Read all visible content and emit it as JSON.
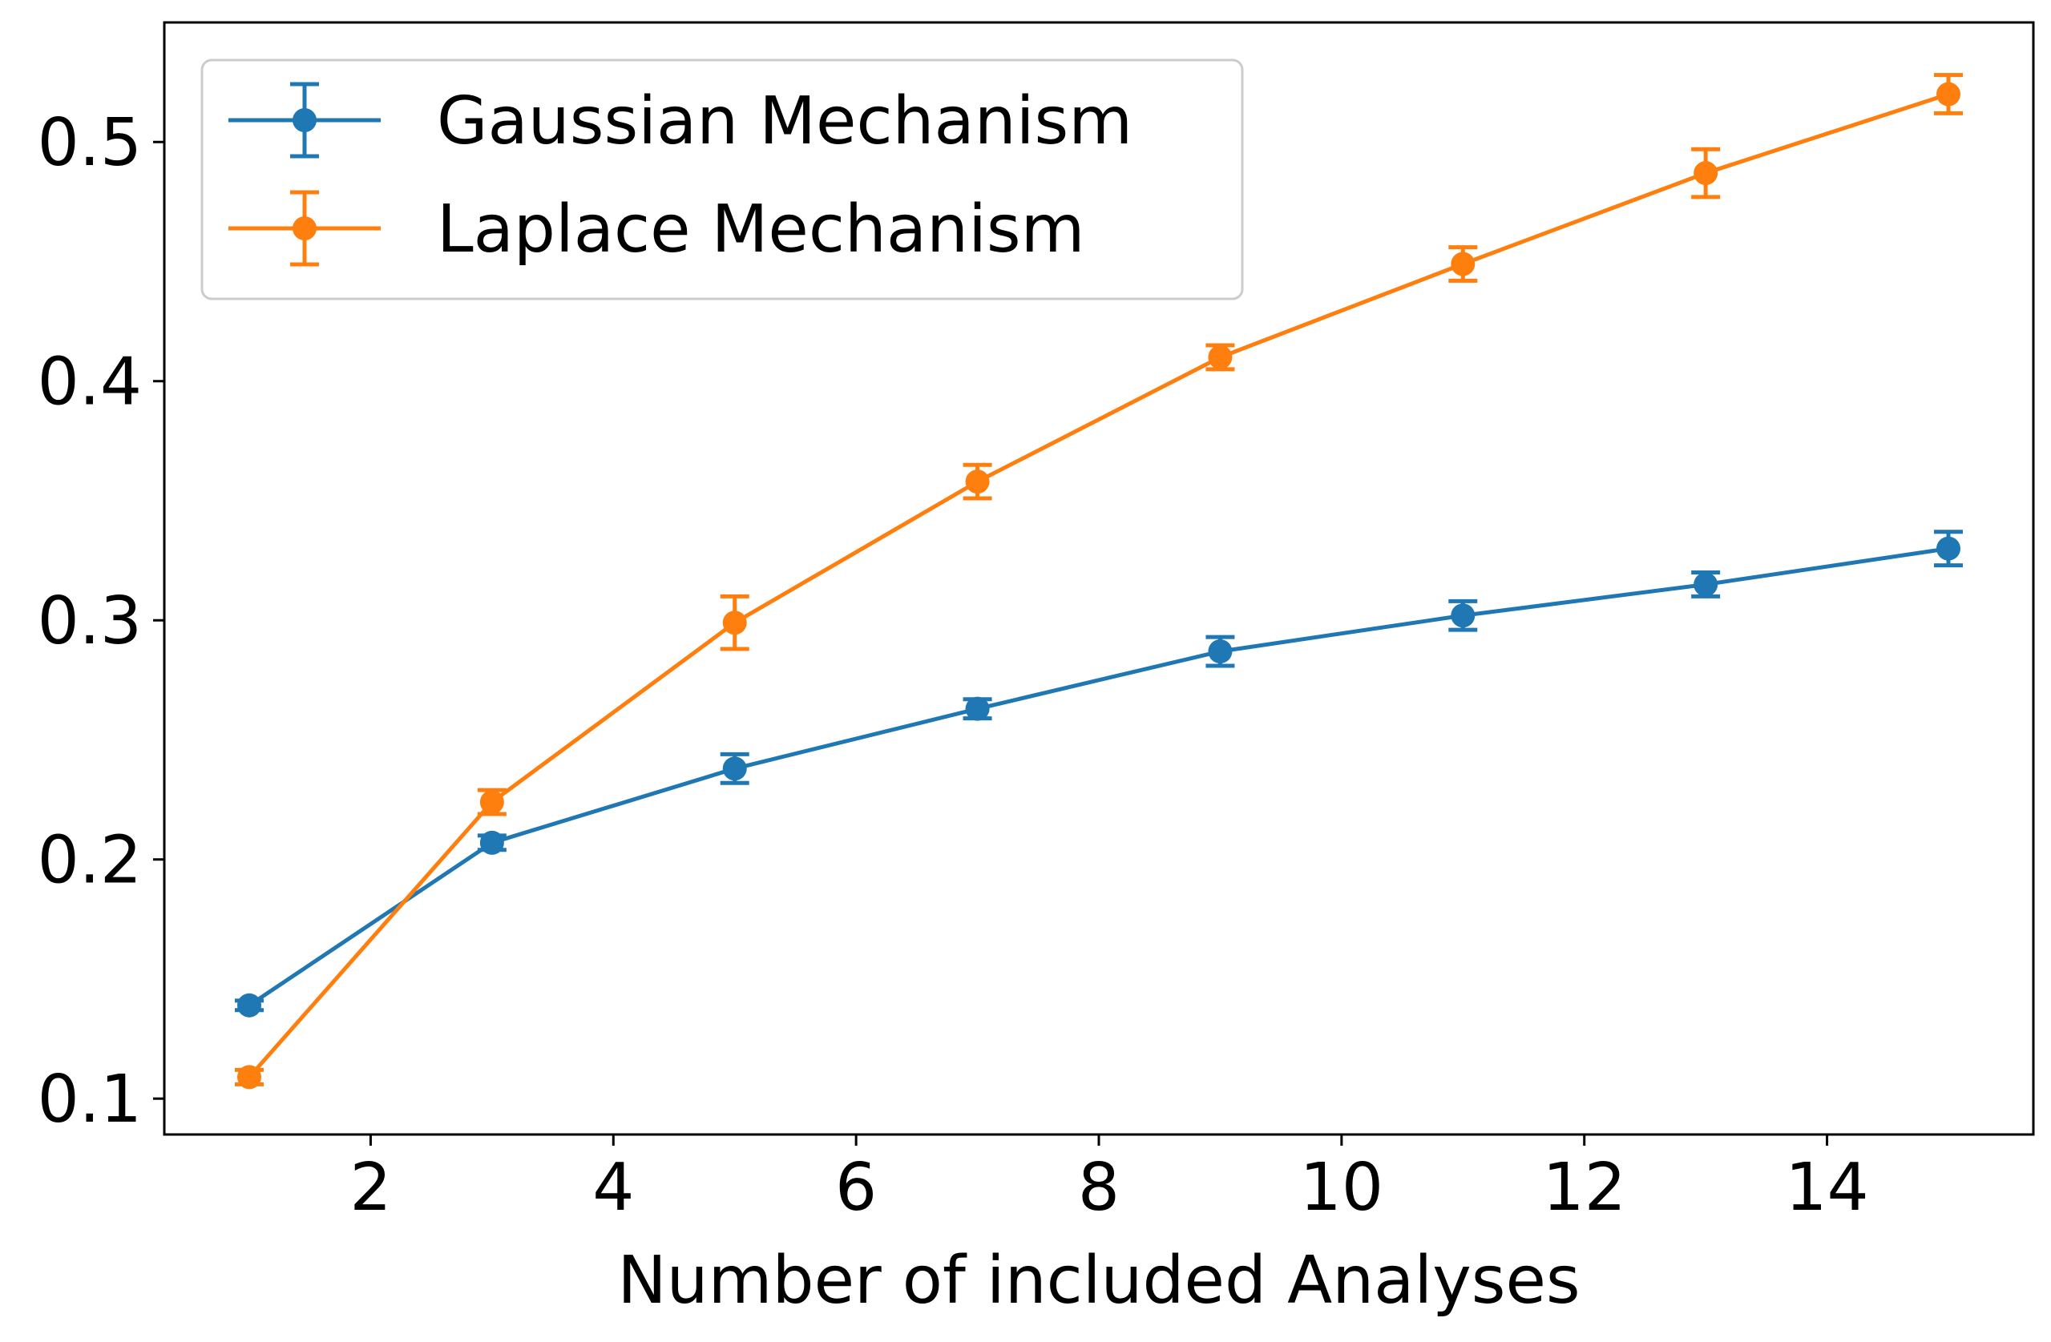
{
  "chart_data": {
    "type": "line",
    "title": "",
    "xlabel": "Number of included Analyses",
    "ylabel": "",
    "xlim": [
      0.3,
      15.7
    ],
    "ylim": [
      0.085,
      0.55
    ],
    "xticks": [
      2,
      4,
      6,
      8,
      10,
      12,
      14
    ],
    "xtick_labels": [
      "2",
      "4",
      "6",
      "8",
      "10",
      "12",
      "14"
    ],
    "yticks": [
      0.1,
      0.2,
      0.3,
      0.4,
      0.5
    ],
    "ytick_labels": [
      "0.1",
      "0.2",
      "0.3",
      "0.4",
      "0.5"
    ],
    "grid": false,
    "legend_position": "top-left",
    "x": [
      1,
      3,
      5,
      7,
      9,
      11,
      13,
      15
    ],
    "series": [
      {
        "name": "Gaussian Mechanism",
        "color": "#1f77b4",
        "values": [
          0.139,
          0.207,
          0.238,
          0.263,
          0.287,
          0.302,
          0.315,
          0.33
        ],
        "errors": [
          0.002,
          0.003,
          0.006,
          0.004,
          0.006,
          0.006,
          0.005,
          0.007
        ]
      },
      {
        "name": "Laplace Mechanism",
        "color": "#ff7f0e",
        "values": [
          0.109,
          0.224,
          0.299,
          0.358,
          0.41,
          0.449,
          0.487,
          0.52
        ],
        "errors": [
          0.003,
          0.005,
          0.011,
          0.007,
          0.005,
          0.007,
          0.01,
          0.008
        ]
      }
    ]
  }
}
